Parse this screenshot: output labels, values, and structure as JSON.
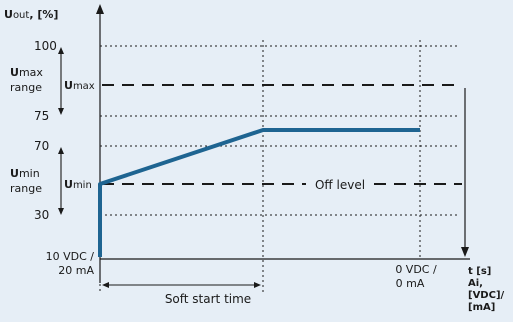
{
  "colors": {
    "background": "#e6eef6",
    "curve": "#1e6491",
    "ink": "#1a1a1a"
  },
  "y_axis": {
    "title_bold": "U",
    "title_sub": "out",
    "title_unit": ", [%]"
  },
  "y_ticks": {
    "t100": "100",
    "t75": "75",
    "t70": "70",
    "t30": "30",
    "origin_line1": "10 VDC /",
    "origin_line2": "20 mA"
  },
  "ranges": {
    "umax_bold": "U",
    "umax_rest": "max",
    "umax_word": "range",
    "umin_bold": "U",
    "umin_rest": "min",
    "umin_word": "range"
  },
  "inline_labels": {
    "umax_bold": "U",
    "umax_sub": "max",
    "umin_bold": "U",
    "umin_sub": "min",
    "off_level": "Off level"
  },
  "x_axis": {
    "end_line1": "0 VDC /",
    "end_line2": "0 mA",
    "soft_start": "Soft start time",
    "title_line1": "t [s]",
    "title_line2": "Ai,",
    "title_line3": "[VDC]/",
    "title_line4": "[mA]"
  }
}
